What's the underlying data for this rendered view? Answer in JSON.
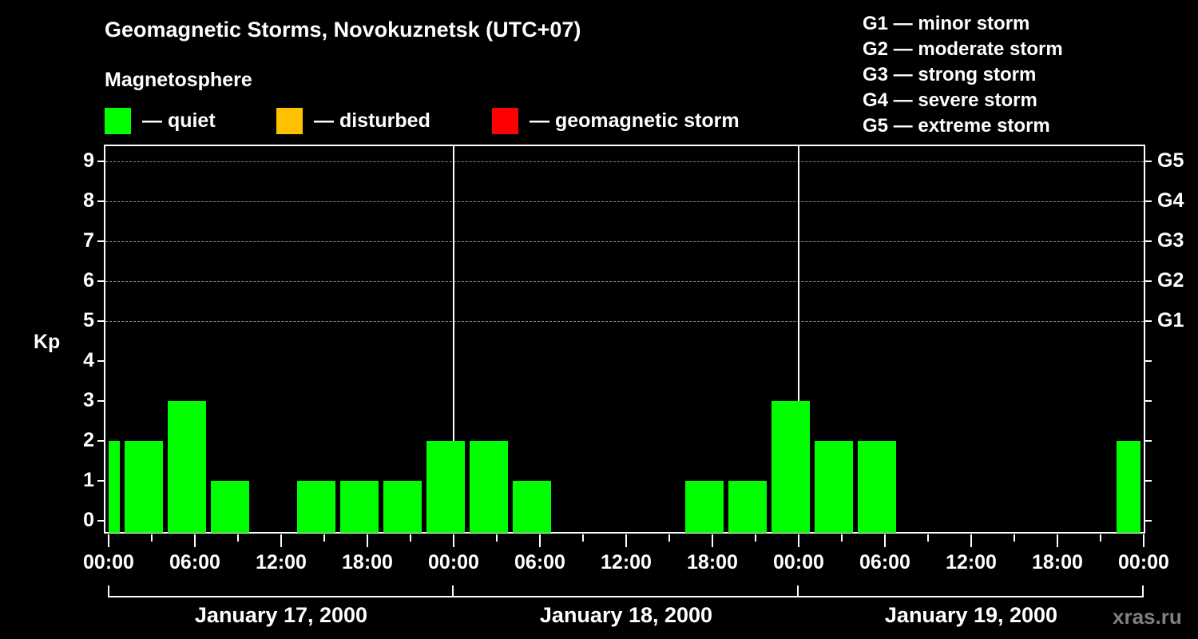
{
  "header": {
    "title": "Geomagnetic Storms, Novokuznetsk (UTC+07)",
    "subtitle": "Magnetosphere"
  },
  "legend": [
    {
      "label": "— quiet",
      "color": "#00ff00"
    },
    {
      "label": "— disturbed",
      "color": "#ffc000"
    },
    {
      "label": "— geomagnetic storm",
      "color": "#ff0000"
    }
  ],
  "g_scale_legend": [
    "G1 — minor storm",
    "G2 — moderate storm",
    "G3 — strong storm",
    "G4 — severe storm",
    "G5 — extreme storm"
  ],
  "watermark": "xras.ru",
  "chart_data": {
    "type": "bar",
    "title": "Geomagnetic Storms, Novokuznetsk (UTC+07)",
    "subtitle": "Magnetosphere",
    "ylabel": "Kp",
    "xlabel": "",
    "ylim": [
      0,
      9
    ],
    "yticks": [
      0,
      1,
      2,
      3,
      4,
      5,
      6,
      7,
      8,
      9
    ],
    "right_axis_labels": {
      "5": "G1",
      "6": "G2",
      "7": "G3",
      "8": "G4",
      "9": "G5"
    },
    "grid": "dashed horizontal at Kp 5-9",
    "interval_hours": 3,
    "categories": [
      "Jan 17 00:00",
      "Jan 17 03:00",
      "Jan 17 06:00",
      "Jan 17 09:00",
      "Jan 17 12:00",
      "Jan 17 15:00",
      "Jan 17 18:00",
      "Jan 17 21:00",
      "Jan 18 00:00",
      "Jan 18 03:00",
      "Jan 18 06:00",
      "Jan 18 09:00",
      "Jan 18 12:00",
      "Jan 18 15:00",
      "Jan 18 18:00",
      "Jan 18 21:00",
      "Jan 19 00:00",
      "Jan 19 03:00",
      "Jan 19 06:00",
      "Jan 19 09:00",
      "Jan 19 12:00",
      "Jan 19 15:00",
      "Jan 19 18:00",
      "Jan 19 21:00",
      "Jan 20 00:00"
    ],
    "values": [
      2,
      2,
      3,
      1,
      0,
      1,
      1,
      1,
      2,
      2,
      1,
      0,
      0,
      0,
      1,
      1,
      3,
      2,
      2,
      0,
      0,
      0,
      0,
      0,
      2
    ],
    "bar_color": "#00ff00",
    "x_tick_labels": [
      "00:00",
      "06:00",
      "12:00",
      "18:00",
      "00:00",
      "06:00",
      "12:00",
      "18:00",
      "00:00",
      "06:00",
      "12:00",
      "18:00",
      "00:00"
    ],
    "date_labels": [
      "January 17, 2000",
      "January 18, 2000",
      "January 19, 2000"
    ]
  }
}
